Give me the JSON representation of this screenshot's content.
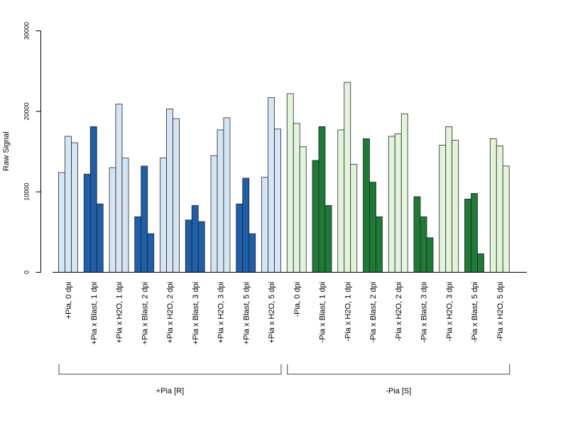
{
  "chart_data": {
    "type": "bar",
    "ylabel": "Raw Signal",
    "ylim": [
      0,
      30000
    ],
    "yticks": [
      "0",
      "10000",
      "20000",
      "30000"
    ],
    "grid": false,
    "categories": [
      "+Pia, 0 dpi",
      "+Pia x Blast, 1 dpi",
      "+Pia x H2O, 1 dpi",
      "+Pia x Blast, 2 dpi",
      "+Pia x H2O, 2 dpi",
      "+Pia x Blast, 3 dpi",
      "+Pia x H2O, 3 dpi",
      "+Pia x Blast, 5 dpi",
      "+Pia x H2O, 5 dpi",
      "-Pia, 0 dpi",
      "-Pia x Blast, 1 dpi",
      "-Pia x H2O, 1 dpi",
      "-Pia x Blast, 2 dpi",
      "-Pia x H2O, 2 dpi",
      "-Pia x Blast, 3 dpi",
      "-Pia x H2O, 3 dpi",
      "-Pia x Blast, 5 dpi",
      "-Pia x H2O, 5 dpi"
    ],
    "values": [
      [
        12400,
        16900,
        16100
      ],
      [
        12200,
        18100,
        8500
      ],
      [
        13000,
        20900,
        14200
      ],
      [
        6900,
        13200,
        4800
      ],
      [
        14200,
        20300,
        19100
      ],
      [
        6500,
        8300,
        6300
      ],
      [
        14500,
        17700,
        19200
      ],
      [
        8500,
        11700,
        4800
      ],
      [
        11800,
        21700,
        17800
      ],
      [
        22200,
        18500,
        15600
      ],
      [
        13900,
        18100,
        8300
      ],
      [
        17700,
        23600,
        13400
      ],
      [
        16600,
        11200,
        6900
      ],
      [
        16900,
        17200,
        19700
      ],
      [
        9400,
        6900,
        4300
      ],
      [
        15800,
        18100,
        16400
      ],
      [
        9100,
        9800,
        2300
      ],
      [
        16600,
        15700,
        13200
      ]
    ],
    "bar_colors": [
      "#d5e5f5",
      "#1f5ea8",
      "#d5e5f5",
      "#1f5ea8",
      "#d5e5f5",
      "#1f5ea8",
      "#d5e5f5",
      "#1f5ea8",
      "#d5e5f5",
      "#e2f5dc",
      "#207a37",
      "#e2f5dc",
      "#207a37",
      "#e2f5dc",
      "#207a37",
      "#e2f5dc",
      "#207a37",
      "#e2f5dc"
    ],
    "groups": [
      {
        "label": "+Pia [R]",
        "start": 0,
        "end": 8
      },
      {
        "label": "-Pia [S]",
        "start": 9,
        "end": 17
      }
    ]
  }
}
